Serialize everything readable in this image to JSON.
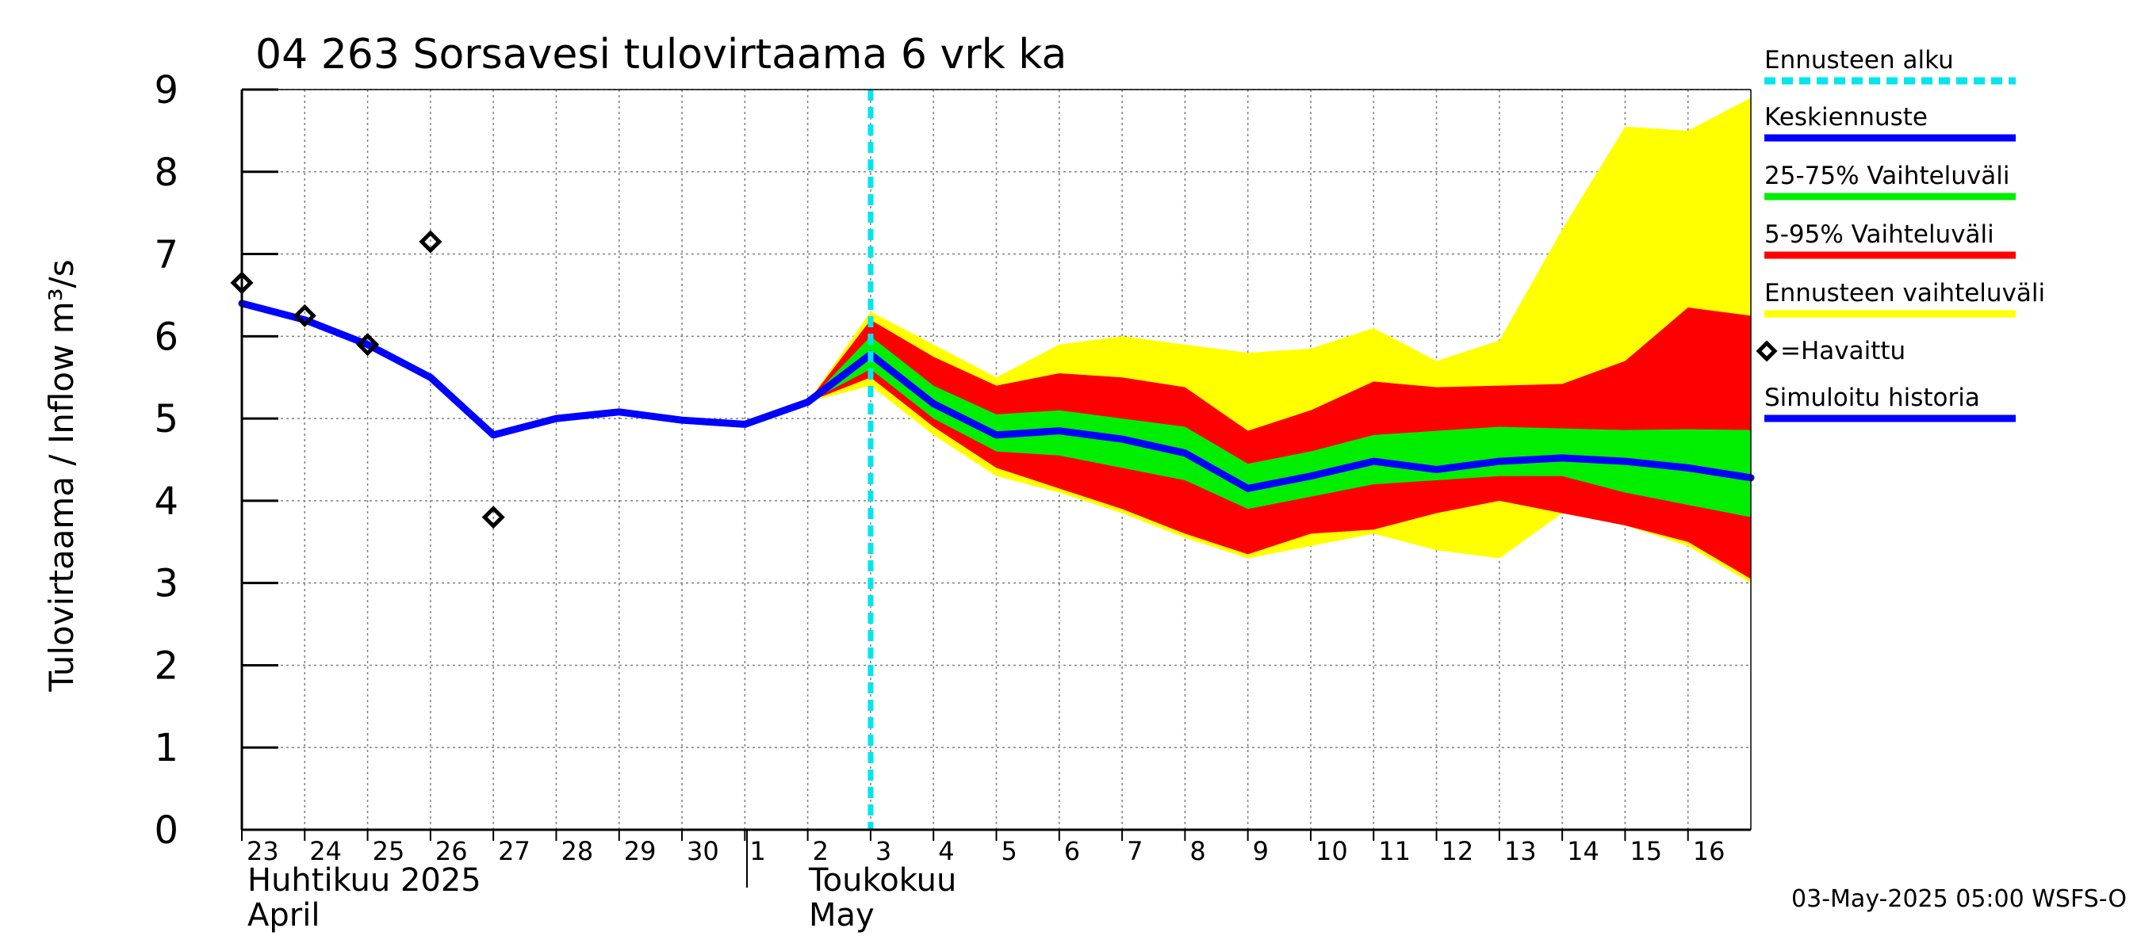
{
  "chart_data": {
    "type": "area",
    "title": "04 263 Sorsavesi tulovirtaama 6 vrk ka",
    "ylabel": "Tulovirtaama / Inflow    m³/s",
    "ylim": [
      0,
      9
    ],
    "yticks": [
      "0",
      "1",
      "2",
      "3",
      "4",
      "5",
      "6",
      "7",
      "8",
      "9"
    ],
    "xlim": [
      0,
      24
    ],
    "x_tick_labels": [
      "23",
      "24",
      "25",
      "26",
      "27",
      "28",
      "29",
      "30",
      "1",
      "2",
      "3",
      "4",
      "5",
      "6",
      "7",
      "8",
      "9",
      "10",
      "11",
      "12",
      "13",
      "14",
      "15",
      "16"
    ],
    "months": [
      {
        "name": "Huhtikuu  2025",
        "name_en": "April"
      },
      {
        "name": "Toukokuu",
        "name_en": "May"
      }
    ],
    "grid": true,
    "forecast_start_x": 10.0,
    "legend_position": "right",
    "legend": [
      {
        "label": "Ennusteen alku",
        "color": "#00e5ee",
        "style": "dashed"
      },
      {
        "label": "Keskiennuste",
        "color": "#0000ff",
        "style": "line"
      },
      {
        "label": "25-75% Vaihteluväli",
        "color": "#00ee00",
        "style": "line"
      },
      {
        "label": "5-95% Vaihteluväli",
        "color": "#ff0000",
        "style": "line"
      },
      {
        "label": "Ennusteen vaihteluväli",
        "color": "#ffff00",
        "style": "line"
      },
      {
        "label": "=Havaittu",
        "color": "#000000",
        "style": "marker"
      },
      {
        "label": "Simuloitu historia",
        "color": "#0000ff",
        "style": "line"
      }
    ],
    "series": [
      {
        "kind": "band",
        "color": "#ffff00",
        "x": [
          9,
          10,
          11,
          12,
          13,
          14,
          15,
          16,
          17,
          18,
          19,
          20,
          21,
          22,
          23,
          24
        ],
        "upper": [
          5.2,
          6.3,
          5.9,
          5.5,
          5.9,
          6.0,
          5.9,
          5.8,
          5.85,
          6.1,
          5.7,
          5.95,
          7.3,
          8.55,
          8.5,
          8.9
        ],
        "lower": [
          5.2,
          5.4,
          4.8,
          4.3,
          4.1,
          3.85,
          3.55,
          3.3,
          3.45,
          3.6,
          3.4,
          3.3,
          3.85,
          3.7,
          3.45,
          3.0
        ]
      },
      {
        "kind": "band",
        "color": "#ff0000",
        "x": [
          9,
          10,
          11,
          12,
          13,
          14,
          15,
          16,
          17,
          18,
          19,
          20,
          21,
          22,
          23,
          24
        ],
        "upper": [
          5.2,
          6.2,
          5.75,
          5.4,
          5.55,
          5.5,
          5.38,
          4.85,
          5.1,
          5.45,
          5.38,
          5.4,
          5.42,
          5.7,
          6.35,
          6.25
        ],
        "lower": [
          5.2,
          5.5,
          4.9,
          4.4,
          4.15,
          3.9,
          3.6,
          3.35,
          3.6,
          3.65,
          3.85,
          4.0,
          3.85,
          3.7,
          3.5,
          3.05
        ]
      },
      {
        "kind": "band",
        "color": "#00ee00",
        "x": [
          9,
          10,
          11,
          12,
          13,
          14,
          15,
          16,
          17,
          18,
          19,
          20,
          21,
          22,
          23,
          24
        ],
        "upper": [
          5.2,
          6.0,
          5.4,
          5.05,
          5.1,
          5.0,
          4.9,
          4.45,
          4.6,
          4.8,
          4.85,
          4.9,
          4.88,
          4.86,
          4.87,
          4.86
        ],
        "lower": [
          5.2,
          5.6,
          5.0,
          4.6,
          4.55,
          4.4,
          4.25,
          3.9,
          4.05,
          4.2,
          4.25,
          4.3,
          4.3,
          4.1,
          3.95,
          3.8
        ]
      },
      {
        "name": "Keskiennuste",
        "kind": "line",
        "color": "#0000ff",
        "x": [
          9,
          10,
          11,
          12,
          13,
          14,
          15,
          16,
          17,
          18,
          19,
          20,
          21,
          22,
          23,
          24
        ],
        "y": [
          5.2,
          5.78,
          5.18,
          4.8,
          4.85,
          4.75,
          4.58,
          4.15,
          4.3,
          4.48,
          4.38,
          4.48,
          4.52,
          4.48,
          4.4,
          4.28
        ]
      },
      {
        "name": "Simuloitu historia",
        "kind": "line",
        "color": "#0000ff",
        "x": [
          0,
          1,
          2,
          3,
          4,
          5,
          6,
          7,
          8,
          9,
          10
        ],
        "y": [
          6.4,
          6.2,
          5.9,
          5.5,
          4.8,
          5.0,
          5.08,
          4.98,
          4.93,
          5.2,
          5.78
        ]
      },
      {
        "name": "=Havaittu",
        "kind": "markers",
        "color": "#000000",
        "x": [
          0,
          1,
          2,
          3,
          4
        ],
        "y": [
          6.65,
          6.25,
          5.9,
          7.15,
          3.8
        ]
      }
    ]
  },
  "footer": "03-May-2025 05:00 WSFS-O"
}
